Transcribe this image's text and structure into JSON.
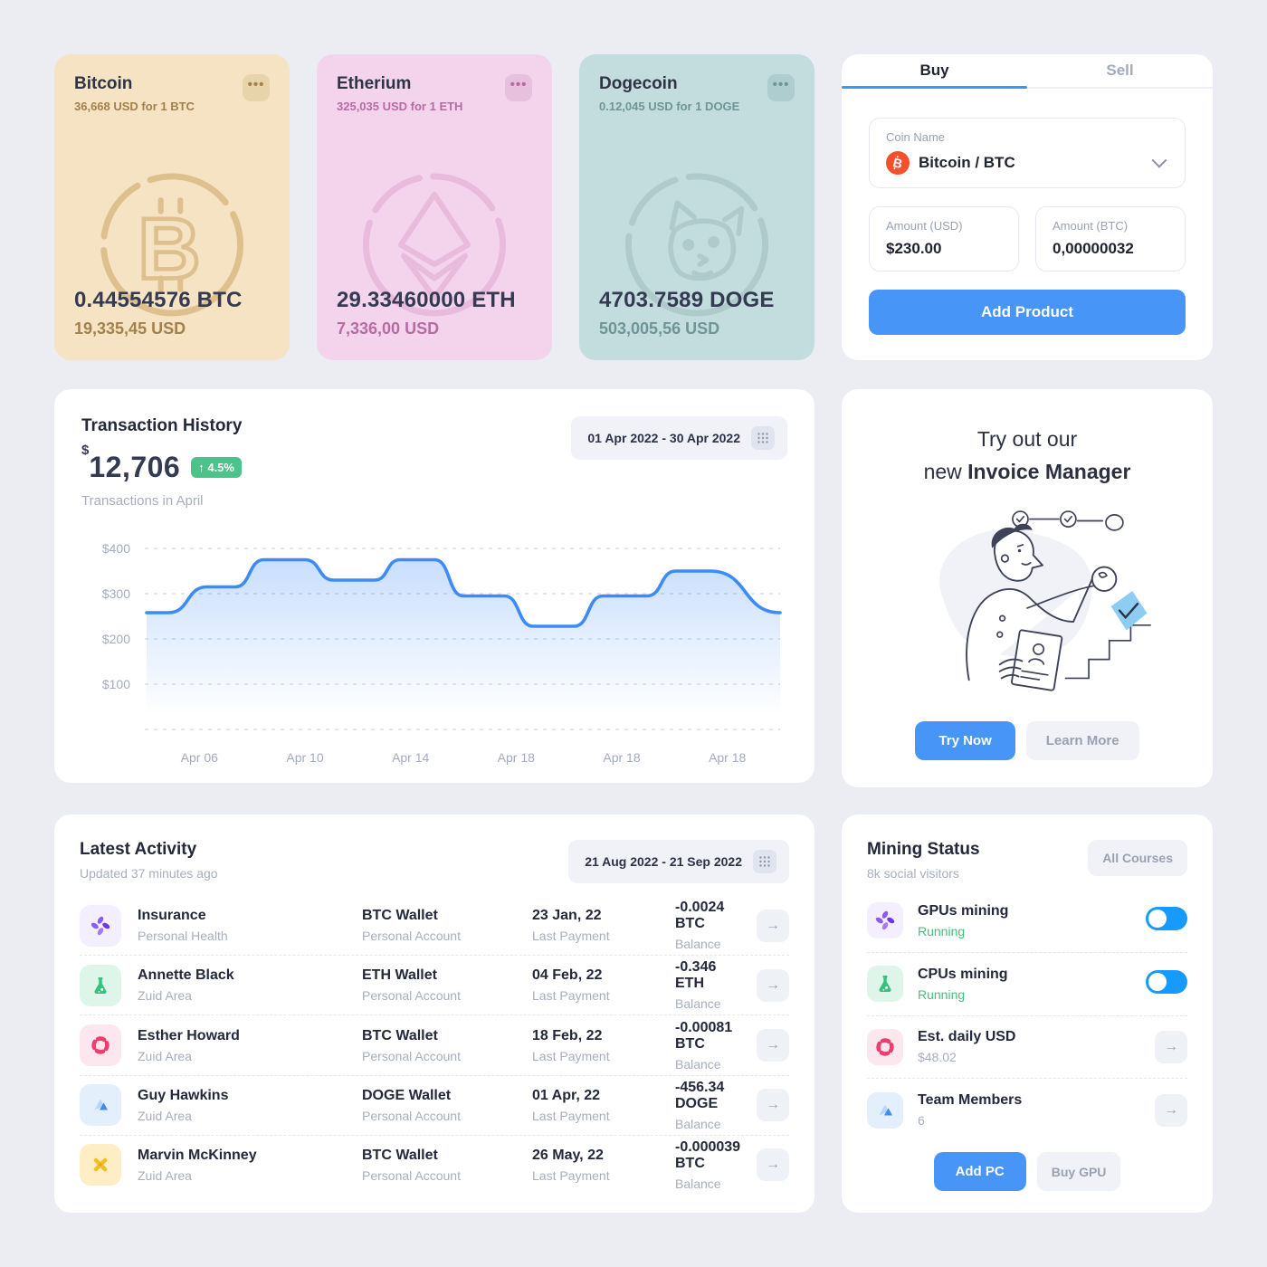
{
  "colors": {
    "accent_blue": "#4796f7",
    "toggle_blue": "#169bfc",
    "chart_line": "#3d8bf8",
    "badge_green": "#4cc38a",
    "running_green": "#3fc27f",
    "page_bg": "#ebedf3"
  },
  "coins": [
    {
      "name": "Bitcoin",
      "rate": "36,668 USD for 1 BTC",
      "balance": "0.44554576 BTC",
      "usd": "19,335,45 USD",
      "bg": "#f5e3c3",
      "accent": "#a2814d",
      "dots_bg": "#e8d4ab",
      "mark": "btc",
      "mark_color": "#cda463"
    },
    {
      "name": "Etherium",
      "rate": "325,035 USD for 1 ETH",
      "balance": "29.33460000 ETH",
      "usd": "7,336,00 USD",
      "bg": "#f4d4ec",
      "accent": "#b76ba3",
      "dots_bg": "#e7c0dd",
      "mark": "eth",
      "mark_color": "#e0a5d0"
    },
    {
      "name": "Dogecoin",
      "rate": "0.12,045 USD for 1 DOGE",
      "balance": "4703.7589 DOGE",
      "usd": "503,005,56 USD",
      "bg": "#c3dcdd",
      "accent": "#6f9596",
      "dots_bg": "#aecdcf",
      "mark": "doge",
      "mark_color": "#9dbcbe"
    }
  ],
  "trade": {
    "tabs": [
      "Buy",
      "Sell"
    ],
    "active_tab": "Buy",
    "coin_label": "Coin Name",
    "coin_value": "Bitcoin / BTC",
    "amount_usd_label": "Amount (USD)",
    "amount_usd_value": "$230.00",
    "amount_btc_label": "Amount (BTC)",
    "amount_btc_value": "0,00000032",
    "submit_label": "Add Product"
  },
  "transactions": {
    "title": "Transaction History",
    "currency": "$",
    "total": "12,706",
    "change": "4.5%",
    "subtitle": "Transactions in April",
    "date_range": "01 Apr 2022 - 30 Apr 2022"
  },
  "chart_data": {
    "type": "area",
    "title": "Transaction History",
    "ylabel": "USD",
    "ylim": [
      0,
      430
    ],
    "y_ticks": [
      400,
      300,
      200,
      100
    ],
    "y_tick_labels": [
      "$400",
      "$300",
      "$200",
      "$100"
    ],
    "x_tick_labels": [
      "Apr 06",
      "Apr 10",
      "Apr 14",
      "Apr 18",
      "Apr 18",
      "Apr 18"
    ],
    "grid": "dashed-horizontal",
    "points": [
      {
        "x": 0.0,
        "y": 258
      },
      {
        "x": 0.035,
        "y": 258
      },
      {
        "x": 0.095,
        "y": 315
      },
      {
        "x": 0.14,
        "y": 315
      },
      {
        "x": 0.185,
        "y": 375
      },
      {
        "x": 0.25,
        "y": 375
      },
      {
        "x": 0.295,
        "y": 330
      },
      {
        "x": 0.36,
        "y": 330
      },
      {
        "x": 0.4,
        "y": 375
      },
      {
        "x": 0.455,
        "y": 375
      },
      {
        "x": 0.5,
        "y": 295
      },
      {
        "x": 0.565,
        "y": 295
      },
      {
        "x": 0.61,
        "y": 228
      },
      {
        "x": 0.675,
        "y": 228
      },
      {
        "x": 0.72,
        "y": 295
      },
      {
        "x": 0.79,
        "y": 295
      },
      {
        "x": 0.835,
        "y": 350
      },
      {
        "x": 0.89,
        "y": 350
      },
      {
        "x": 1.0,
        "y": 258
      }
    ]
  },
  "invoice": {
    "line1": "Try out our",
    "line2_normal": "new ",
    "line2_bold": "Invoice Manager",
    "try_label": "Try Now",
    "learn_label": "Learn More"
  },
  "activity": {
    "title": "Latest Activity",
    "updated": "Updated 37 minutes ago",
    "date_range": "21 Aug 2022 - 21 Sep 2022",
    "rows": [
      {
        "icon": "pinwheel-icon",
        "tile_bg": "#f3effe",
        "name": "Insurance",
        "area": "Personal Health",
        "wallet": "BTC Wallet",
        "wallet_sub": "Personal Account",
        "date": "23 Jan, 22",
        "date_sub": "Last Payment",
        "balance": "-0.0024 BTC",
        "balance_sub": "Balance"
      },
      {
        "icon": "flask-icon",
        "tile_bg": "#def5e9",
        "name": "Annette Black",
        "area": "Zuid Area",
        "wallet": "ETH Wallet",
        "wallet_sub": "Personal Account",
        "date": "04 Feb, 22",
        "date_sub": "Last Payment",
        "balance": "-0.346 ETH",
        "balance_sub": "Balance"
      },
      {
        "icon": "lifebuoy-icon",
        "tile_bg": "#fde7ee",
        "name": "Esther Howard",
        "area": "Zuid Area",
        "wallet": "BTC Wallet",
        "wallet_sub": "Personal Account",
        "date": "18 Feb, 22",
        "date_sub": "Last Payment",
        "balance": "-0.00081 BTC",
        "balance_sub": "Balance"
      },
      {
        "icon": "triangles-icon",
        "tile_bg": "#e4effc",
        "name": "Guy Hawkins",
        "area": "Zuid Area",
        "wallet": "DOGE Wallet",
        "wallet_sub": "Personal Account",
        "date": "01 Apr, 22",
        "date_sub": "Last Payment",
        "balance": "-456.34 DOGE",
        "balance_sub": "Balance"
      },
      {
        "icon": "cross-icon",
        "tile_bg": "#fdeec6",
        "name": "Marvin McKinney",
        "area": "Zuid Area",
        "wallet": "BTC Wallet",
        "wallet_sub": "Personal Account",
        "date": "26 May, 22",
        "date_sub": "Last Payment",
        "balance": "-0.000039 BTC",
        "balance_sub": "Balance"
      }
    ]
  },
  "mining": {
    "title": "Mining Status",
    "subtitle": "8k social visitors",
    "badge": "All Courses",
    "rows": [
      {
        "icon": "pinwheel-icon",
        "tile_bg": "#f3effe",
        "label": "GPUs mining",
        "sub": "Running",
        "sub_style": "running",
        "control": "toggle",
        "toggle_on": true
      },
      {
        "icon": "flask-icon",
        "tile_bg": "#def5e9",
        "label": "CPUs mining",
        "sub": "Running",
        "sub_style": "running",
        "control": "toggle",
        "toggle_on": true
      },
      {
        "icon": "lifebuoy-icon",
        "tile_bg": "#fde7ee",
        "label": "Est. daily USD",
        "sub": "$48.02",
        "sub_style": "plain",
        "control": "arrow"
      },
      {
        "icon": "triangles-icon",
        "tile_bg": "#e4effc",
        "label": "Team Members",
        "sub": "6",
        "sub_style": "plain",
        "control": "arrow"
      }
    ],
    "add_pc_label": "Add PC",
    "buy_gpu_label": "Buy GPU"
  }
}
